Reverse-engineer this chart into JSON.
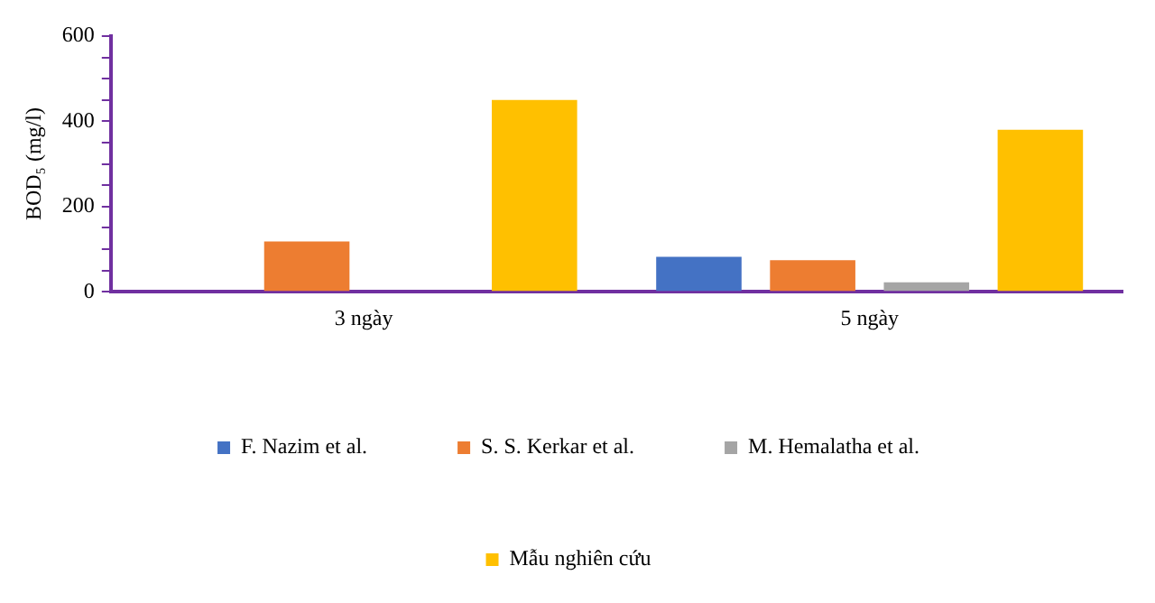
{
  "chart_data": {
    "type": "bar",
    "ylabel": "BOD₅ (mg/l)",
    "categories": [
      "3 ngày",
      "5 ngày"
    ],
    "series": [
      {
        "name": "F. Nazim et al.",
        "color": "#4472c4",
        "values": [
          null,
          82
        ]
      },
      {
        "name": "S. S. Kerkar et al.",
        "color": "#ed7d31",
        "values": [
          118,
          74
        ]
      },
      {
        "name": "M. Hemalatha et al.",
        "color": "#a5a5a5",
        "values": [
          null,
          22
        ]
      },
      {
        "name": "Mẫu nghiên cứu",
        "color": "#ffc000",
        "values": [
          450,
          380
        ]
      }
    ],
    "ylim": [
      0,
      600
    ],
    "yticks": [
      0,
      {
        "value": 50,
        "label": null
      },
      {
        "value": 100,
        "label": null
      },
      {
        "value": 150,
        "label": null
      },
      200,
      {
        "value": 250,
        "label": null
      },
      {
        "value": 300,
        "label": null
      },
      {
        "value": 350,
        "label": null
      },
      400,
      {
        "value": 450,
        "label": null
      },
      {
        "value": 500,
        "label": null
      },
      {
        "value": 550,
        "label": null
      },
      600
    ],
    "grid": false,
    "legend": "bottom"
  }
}
